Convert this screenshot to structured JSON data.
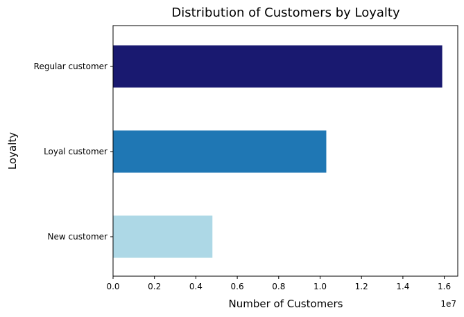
{
  "chart_data": {
    "type": "bar",
    "orientation": "horizontal",
    "title": "Distribution of Customers by Loyalty",
    "xlabel": "Number of Customers",
    "ylabel": "Loyalty",
    "categories": [
      "New customer",
      "Loyal customer",
      "Regular customer"
    ],
    "values": [
      4800000,
      10300000,
      15900000
    ],
    "colors": [
      "#add8e6",
      "#1f77b4",
      "#191970"
    ],
    "xlim": [
      0,
      16650000
    ],
    "xticks": [
      0,
      2000000,
      4000000,
      6000000,
      8000000,
      10000000,
      12000000,
      14000000,
      16000000
    ],
    "xtick_labels": [
      "0.0",
      "0.2",
      "0.4",
      "0.6",
      "0.8",
      "1.0",
      "1.2",
      "1.4",
      "1.6"
    ],
    "x_offset_label": "1e7",
    "grid": false,
    "legend": "none"
  }
}
